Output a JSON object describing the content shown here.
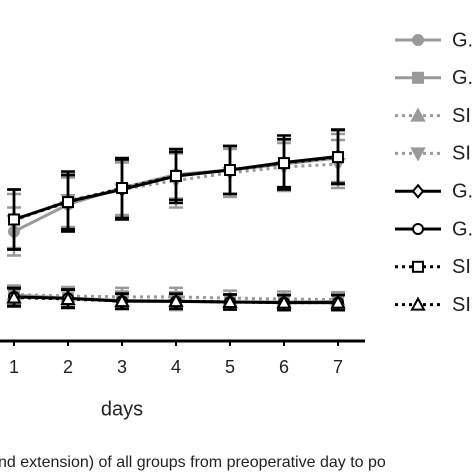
{
  "chart_data": {
    "type": "line",
    "x_label": "days",
    "caption": "nd extension) of all groups from preoperative day to po",
    "x": [
      1,
      2,
      3,
      4,
      5,
      6,
      7
    ],
    "xlim": [
      0,
      7.5
    ],
    "xticks": [
      1,
      2,
      3,
      4,
      5,
      6,
      7
    ],
    "ylim": [
      0,
      100
    ],
    "legend": "right",
    "series": [
      {
        "name": "G.",
        "color": "#9a9a9a",
        "dash": false,
        "marker": "circle",
        "values": [
          36.5,
          45.5,
          51,
          55.5,
          57,
          59,
          61
        ],
        "errors": [
          8,
          9,
          9,
          8,
          8,
          8,
          8
        ]
      },
      {
        "name": "G.",
        "color": "#9a9a9a",
        "dash": false,
        "marker": "square",
        "values": [
          15.3,
          14.3,
          13.5,
          13.3,
          13,
          13,
          13.2
        ],
        "errors": [
          3,
          3,
          3,
          3,
          2.5,
          2.5,
          2.5
        ]
      },
      {
        "name": "SI",
        "color": "#9a9a9a",
        "dash": true,
        "marker": "triangle-up",
        "values": [
          15.5,
          15,
          14.7,
          14.7,
          14.3,
          14,
          13.8
        ],
        "errors": [
          3,
          3,
          3,
          3,
          2.5,
          2.5,
          2.5
        ]
      },
      {
        "name": "SI",
        "color": "#9a9a9a",
        "dash": true,
        "marker": "triangle-down",
        "values": [
          40,
          47,
          50.5,
          53.5,
          56,
          58,
          59
        ],
        "errors": [
          9,
          9,
          9,
          9,
          8,
          8,
          8
        ]
      },
      {
        "name": "G.",
        "color": "#000000",
        "dash": false,
        "marker": "diamond",
        "values": [
          40.5,
          46.5,
          50.5,
          55,
          57,
          59.5,
          61.5
        ],
        "errors": [
          10,
          10,
          10,
          8,
          8,
          9,
          9
        ]
      },
      {
        "name": "G.",
        "color": "#000000",
        "dash": false,
        "marker": "circle",
        "values": [
          14.7,
          14.2,
          13.3,
          13.2,
          13,
          12.8,
          12.8
        ],
        "errors": [
          3,
          3,
          2.5,
          2.5,
          2.5,
          2.5,
          2.5
        ]
      },
      {
        "name": "SI",
        "color": "#000000",
        "dash": true,
        "marker": "square",
        "values": [
          40.5,
          46.3,
          51,
          55,
          57,
          59.3,
          61.3
        ],
        "errors": [
          10,
          9,
          10,
          9,
          8,
          8,
          9
        ]
      },
      {
        "name": "SI",
        "color": "#000000",
        "dash": true,
        "marker": "triangle-up",
        "values": [
          14.5,
          14,
          13.3,
          13.3,
          13,
          12.8,
          12.8
        ],
        "errors": [
          3,
          3,
          2.5,
          2.5,
          2.5,
          2.5,
          2.5
        ]
      }
    ]
  }
}
